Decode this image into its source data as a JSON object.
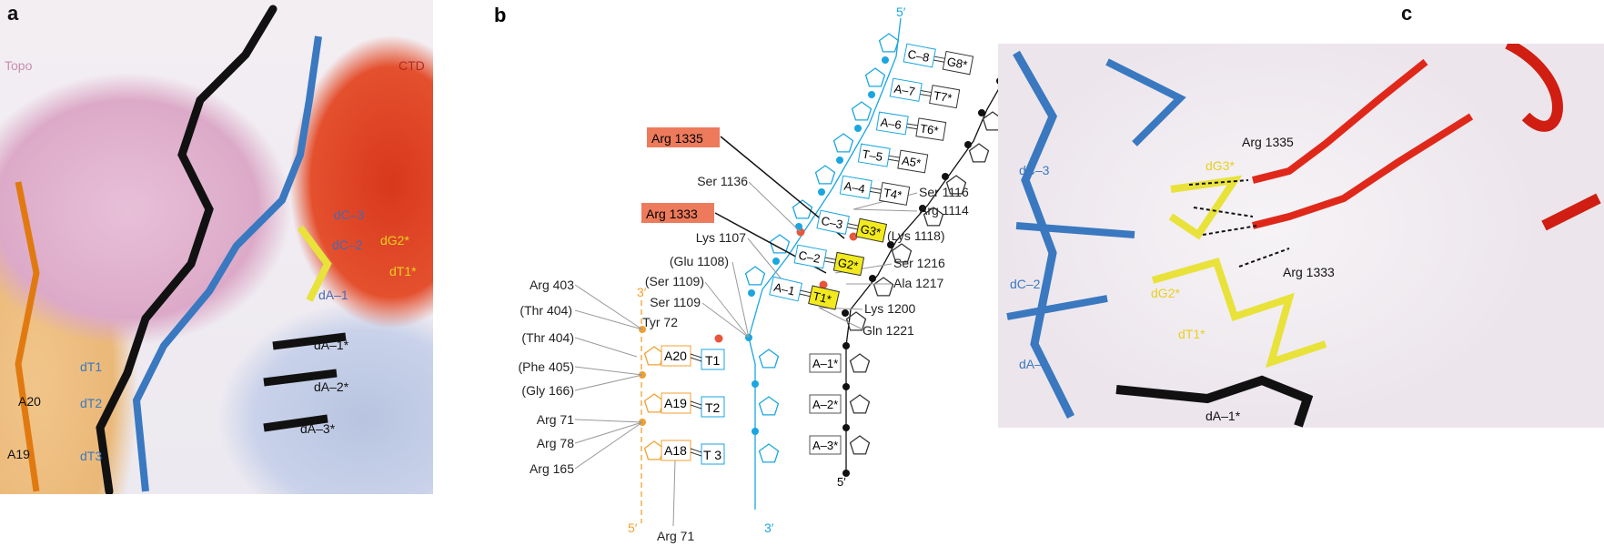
{
  "panel_a": {
    "letter": "a",
    "labels": {
      "topo": "Topo",
      "ctd": "CTD",
      "dC3": "dC–3",
      "dG2s": "dG2*",
      "dC2": "dC–2",
      "dT1s": "dT1*",
      "dA1": "dA–1",
      "dA1s": "dA–1*",
      "dA2s": "dA–2*",
      "dA3s": "dA–3*",
      "dT1": "dT1",
      "A20": "A20",
      "dT2": "dT2",
      "A19": "A19",
      "dT3": "dT3"
    }
  },
  "panel_b": {
    "letter": "b",
    "strand_top": {
      "five_prime": "5′",
      "three_prime": "3′"
    },
    "pairs": [
      {
        "a": "C–8",
        "b": "G8*"
      },
      {
        "a": "A–7",
        "b": "T7*"
      },
      {
        "a": "A–6",
        "b": "T6*"
      },
      {
        "a": "T–5",
        "b": "A5*"
      },
      {
        "a": "A–4",
        "b": "T4*"
      },
      {
        "a": "C–3",
        "b": "G3*"
      },
      {
        "a": "C–2",
        "b": "G2*"
      },
      {
        "a": "A–1",
        "b": "T1*"
      }
    ],
    "single": [
      "A–1*",
      "A–2*",
      "A–3*"
    ],
    "single_five_prime": "5′",
    "lower_pairs": [
      {
        "a": "A20",
        "b": "T1"
      },
      {
        "a": "A19",
        "b": "T2"
      },
      {
        "a": "A18",
        "b": "T 3"
      }
    ],
    "orange_ends": {
      "top": "3′",
      "bottom": "5′"
    },
    "cyan_bottom_end": "3′",
    "highlighted_residues": [
      "Arg 1335",
      "Arg 1333"
    ],
    "residues": {
      "ser1136": "Ser 1136",
      "lys1107": "Lys 1107",
      "glu1108": "(Glu 1108)",
      "ser1109p": "(Ser 1109)",
      "ser1109": "Ser 1109",
      "tyr72": "Tyr 72",
      "ser1116": "Ser 1116",
      "arg1114": "Arg 1114",
      "lys1118": "(Lys 1118)",
      "ser1216": "Ser 1216",
      "ala1217": "Ala 1217",
      "lys1200": "Lys 1200",
      "gln1221": "Gln 1221",
      "arg403": "Arg 403",
      "thr404a": "(Thr 404)",
      "thr404b": "(Thr 404)",
      "phe405": "(Phe 405)",
      "gly166": "(Gly 166)",
      "arg71a": "Arg 71",
      "arg78": "Arg 78",
      "arg165": "Arg 165",
      "arg71b": "Arg 71"
    },
    "colors": {
      "cyan": "#1aa6e0",
      "orange": "#f0a030",
      "black": "#111111",
      "contact_red": "#e8553a",
      "highlight_box": "#ee7a5c",
      "yellow_box": "#f2ea1e"
    }
  },
  "panel_c": {
    "letter": "c",
    "labels": {
      "arg1335": "Arg 1335",
      "dG3s": "dG3*",
      "dC3": "dC–3",
      "arg1333": "Arg 1333",
      "dC2": "dC–2",
      "dG2s": "dG2*",
      "dT1s": "dT1*",
      "dA1": "dA–1",
      "dA1s": "dA–1*"
    }
  }
}
